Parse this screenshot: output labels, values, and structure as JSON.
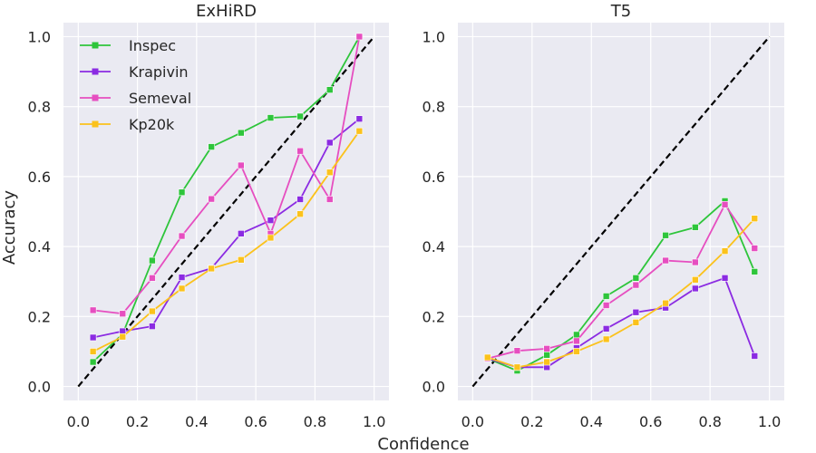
{
  "chart_data": [
    {
      "type": "line",
      "title": "ExHiRD",
      "xlim": [
        -0.05,
        1.05
      ],
      "ylim": [
        -0.04,
        1.04
      ],
      "xticks": [
        "0.0",
        "0.2",
        "0.4",
        "0.6",
        "0.8",
        "1.0"
      ],
      "yticks": [
        "0.0",
        "0.2",
        "0.4",
        "0.6",
        "0.8",
        "1.0"
      ],
      "legend": "top-left",
      "x": [
        0.05,
        0.15,
        0.25,
        0.35,
        0.45,
        0.55,
        0.65,
        0.75,
        0.85,
        0.95
      ],
      "series": [
        {
          "name": "Inspec",
          "color": "#2ec53b",
          "values": [
            0.07,
            0.15,
            0.36,
            0.555,
            0.685,
            0.725,
            0.768,
            0.772,
            0.848,
            1.0
          ]
        },
        {
          "name": "Krapivin",
          "color": "#8b2be2",
          "values": [
            0.14,
            0.158,
            0.172,
            0.312,
            0.338,
            0.437,
            0.475,
            0.535,
            0.697,
            0.765
          ]
        },
        {
          "name": "Semeval",
          "color": "#e64ec0",
          "values": [
            0.218,
            0.208,
            0.31,
            0.43,
            0.536,
            0.632,
            0.437,
            0.673,
            0.535,
            1.0
          ]
        },
        {
          "name": "Kp20k",
          "color": "#fbc21c",
          "values": [
            0.1,
            0.142,
            0.215,
            0.28,
            0.337,
            0.362,
            0.425,
            0.493,
            0.612,
            0.73
          ]
        }
      ]
    },
    {
      "type": "line",
      "title": "T5",
      "xlim": [
        -0.05,
        1.05
      ],
      "ylim": [
        -0.04,
        1.04
      ],
      "xticks": [
        "0.0",
        "0.2",
        "0.4",
        "0.6",
        "0.8",
        "1.0"
      ],
      "yticks": [
        "0.0",
        "0.2",
        "0.4",
        "0.6",
        "0.8",
        "1.0"
      ],
      "x": [
        0.05,
        0.15,
        0.25,
        0.35,
        0.45,
        0.55,
        0.65,
        0.75,
        0.85,
        0.95
      ],
      "series": [
        {
          "name": "Inspec",
          "color": "#2ec53b",
          "values": [
            0.08,
            0.045,
            0.09,
            0.148,
            0.258,
            0.31,
            0.432,
            0.455,
            0.53,
            0.328
          ]
        },
        {
          "name": "Krapivin",
          "color": "#8b2be2",
          "values": [
            0.08,
            0.055,
            0.055,
            0.11,
            0.165,
            0.212,
            0.225,
            0.28,
            0.31,
            0.087
          ]
        },
        {
          "name": "Semeval",
          "color": "#e64ec0",
          "values": [
            0.08,
            0.102,
            0.108,
            0.13,
            0.232,
            0.29,
            0.36,
            0.355,
            0.52,
            0.395
          ]
        },
        {
          "name": "Kp20k",
          "color": "#fbc21c",
          "values": [
            0.083,
            0.055,
            0.07,
            0.1,
            0.135,
            0.183,
            0.238,
            0.305,
            0.387,
            0.48
          ]
        }
      ]
    }
  ],
  "shared": {
    "xlabel": "Confidence",
    "ylabel": "Accuracy"
  }
}
